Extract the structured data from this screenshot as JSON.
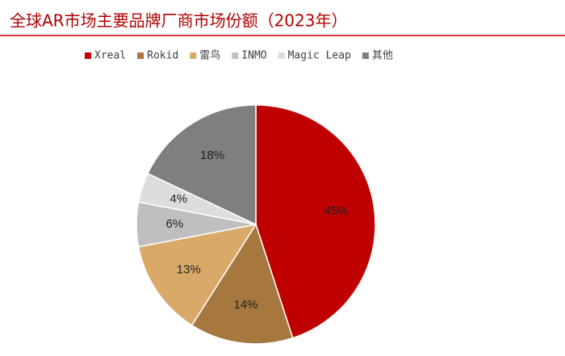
{
  "chart_data": {
    "type": "pie",
    "title": "全球AR市场主要品牌厂商市场份额（2023年）",
    "categories": [
      "Xreal",
      "Rokid",
      "雷鸟",
      "INMO",
      "Magic Leap",
      "其他"
    ],
    "values": [
      45,
      14,
      13,
      6,
      4,
      18
    ],
    "value_labels": [
      "45%",
      "14%",
      "13%",
      "6%",
      "4%",
      "18%"
    ],
    "colors": [
      "#c00000",
      "#a6773f",
      "#d8a968",
      "#bfbfbf",
      "#dddddd",
      "#7f7f7f"
    ],
    "legend": "top"
  }
}
